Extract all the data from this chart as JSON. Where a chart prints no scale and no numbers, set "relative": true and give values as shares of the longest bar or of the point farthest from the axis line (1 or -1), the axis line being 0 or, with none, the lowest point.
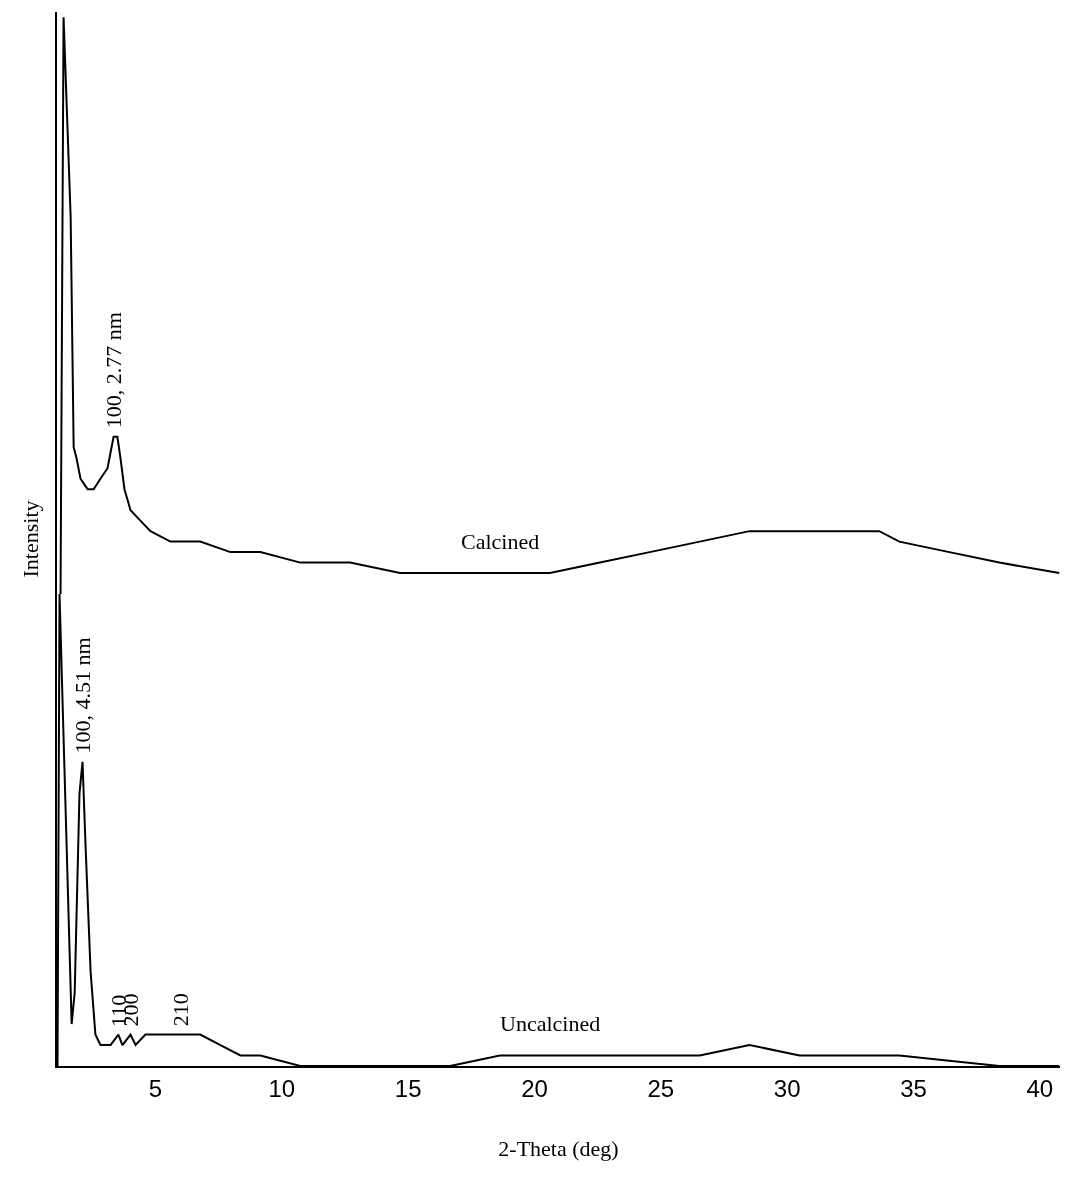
{
  "chart_data": {
    "type": "line",
    "relative": true,
    "xlabel": "2-Theta (deg)",
    "ylabel": "Intensity",
    "xlim": [
      1.1,
      40.8
    ],
    "xticks": [
      5,
      10,
      15,
      20,
      25,
      30,
      35,
      40
    ],
    "legend": false,
    "marker": "none",
    "line_style": "solid",
    "series": [
      {
        "name": "Calcined",
        "color": "#000000",
        "x": [
          1.24,
          1.36,
          1.64,
          1.76,
          1.87,
          2.03,
          2.31,
          2.55,
          2.82,
          3.1,
          3.34,
          3.49,
          3.61,
          3.77,
          4.01,
          4.4,
          4.8,
          5.59,
          6.77,
          7.96,
          9.15,
          10.73,
          12.7,
          14.68,
          16.66,
          18.63,
          20.61,
          22.59,
          24.56,
          26.54,
          28.51,
          30.49,
          32.47,
          33.65,
          34.44,
          36.42,
          38.4,
          40.77
        ],
        "values": [
          0.45,
          1.0,
          0.81,
          0.59,
          0.58,
          0.56,
          0.55,
          0.55,
          0.56,
          0.57,
          0.6,
          0.6,
          0.58,
          0.55,
          0.53,
          0.52,
          0.51,
          0.5,
          0.5,
          0.49,
          0.49,
          0.48,
          0.48,
          0.47,
          0.47,
          0.47,
          0.47,
          0.48,
          0.49,
          0.5,
          0.51,
          0.51,
          0.51,
          0.51,
          0.5,
          0.49,
          0.48,
          0.47
        ]
      },
      {
        "name": "Uncalcined",
        "color": "#000000",
        "x": [
          1.12,
          1.2,
          1.68,
          1.8,
          1.99,
          2.11,
          2.23,
          2.43,
          2.62,
          2.82,
          3.22,
          3.53,
          3.69,
          4.01,
          4.21,
          4.6,
          5.19,
          5.98,
          6.77,
          7.57,
          8.36,
          9.15,
          10.73,
          12.7,
          14.68,
          16.66,
          18.63,
          20.61,
          22.59,
          24.56,
          26.54,
          28.51,
          30.49,
          32.47,
          34.44,
          38.4,
          40.77
        ],
        "values": [
          0.0,
          0.45,
          0.04,
          0.07,
          0.26,
          0.29,
          0.21,
          0.09,
          0.03,
          0.02,
          0.02,
          0.03,
          0.02,
          0.03,
          0.02,
          0.03,
          0.03,
          0.03,
          0.03,
          0.02,
          0.01,
          0.01,
          0.0,
          0.0,
          0.0,
          0.0,
          0.01,
          0.01,
          0.01,
          0.01,
          0.01,
          0.02,
          0.01,
          0.01,
          0.01,
          0.0,
          0.0
        ]
      }
    ],
    "annotations": [
      {
        "text": "100, 2.77 nm",
        "x": 3.34,
        "y": 0.6
      },
      {
        "text": "100, 4.51 nm",
        "x": 2.11,
        "y": 0.29
      },
      {
        "text": "110",
        "x": 3.53,
        "y": 0.03
      },
      {
        "text": "200",
        "x": 4.01,
        "y": 0.03
      },
      {
        "text": "210",
        "x": 5.98,
        "y": 0.03
      }
    ]
  }
}
